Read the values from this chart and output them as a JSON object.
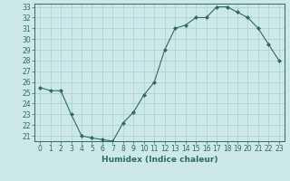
{
  "x": [
    0,
    1,
    2,
    3,
    4,
    5,
    6,
    7,
    8,
    9,
    10,
    11,
    12,
    13,
    14,
    15,
    16,
    17,
    18,
    19,
    20,
    21,
    22,
    23
  ],
  "y": [
    25.5,
    25.2,
    25.2,
    23.0,
    21.0,
    20.8,
    20.65,
    20.5,
    22.2,
    23.2,
    24.8,
    26.0,
    29.0,
    31.0,
    31.3,
    32.0,
    32.0,
    33.0,
    33.0,
    32.5,
    32.0,
    31.0,
    29.5,
    28.0
  ],
  "line_color": "#2e6b5e",
  "marker": "D",
  "marker_size": 2.0,
  "bg_color": "#cce8e8",
  "grid_color": "#aacece",
  "xlabel": "Humidex (Indice chaleur)",
  "ylim_min": 20.5,
  "ylim_max": 33.3,
  "xlim_min": -0.5,
  "xlim_max": 23.5,
  "yticks": [
    21,
    22,
    23,
    24,
    25,
    26,
    27,
    28,
    29,
    30,
    31,
    32,
    33
  ],
  "xticks": [
    0,
    1,
    2,
    3,
    4,
    5,
    6,
    7,
    8,
    9,
    10,
    11,
    12,
    13,
    14,
    15,
    16,
    17,
    18,
    19,
    20,
    21,
    22,
    23
  ],
  "tick_label_fontsize": 5.5,
  "xlabel_fontsize": 6.5,
  "tick_color": "#2e6b5e",
  "label_color": "#2e6b5e",
  "linewidth": 0.8,
  "spine_color": "#2e6b5e"
}
